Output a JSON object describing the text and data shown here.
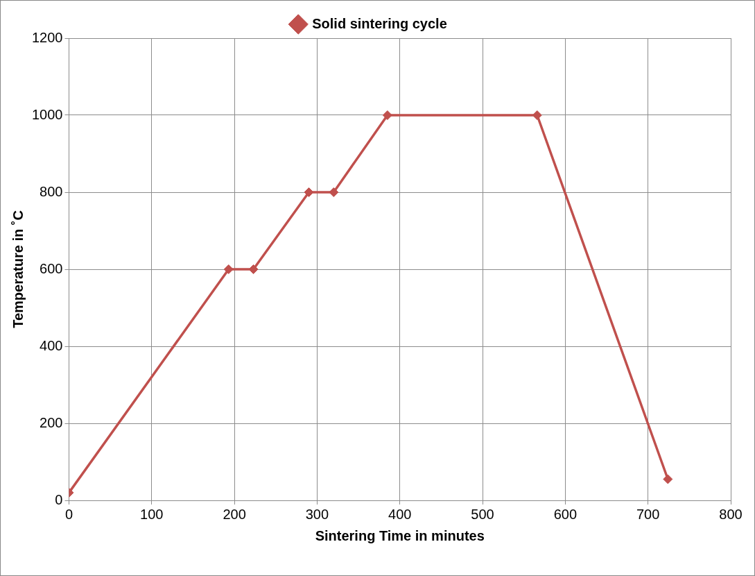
{
  "chart_data": {
    "type": "line",
    "xlabel": "Sintering Time in minutes",
    "ylabel": "Temperature in ˚C",
    "x": [
      0,
      193,
      223,
      290,
      320,
      385,
      566,
      724
    ],
    "series": [
      {
        "name": "Solid sintering cycle",
        "color": "#c0504d",
        "values": [
          20,
          600,
          600,
          800,
          800,
          1000,
          1000,
          55
        ]
      }
    ],
    "xlim": [
      0,
      800
    ],
    "xticks": [
      0,
      100,
      200,
      300,
      400,
      500,
      600,
      700,
      800
    ],
    "ylim": [
      0,
      1200
    ],
    "yticks": [
      0,
      200,
      400,
      600,
      800,
      1000,
      1200
    ],
    "grid": true,
    "legend": "top",
    "marker": "diamond",
    "line_style": "solid"
  }
}
